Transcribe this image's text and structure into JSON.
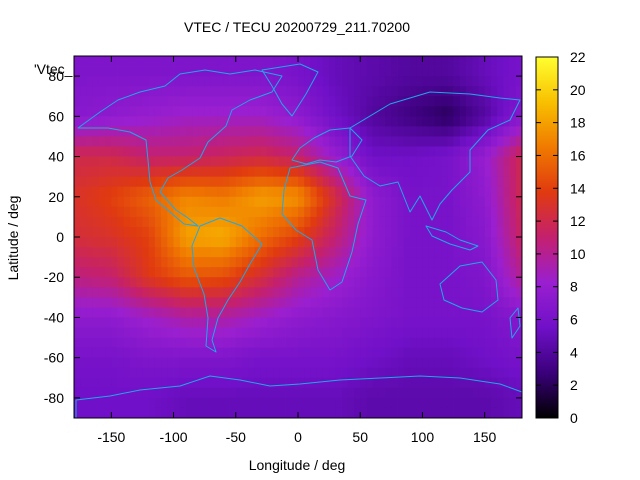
{
  "chart_data": {
    "type": "heatmap",
    "title": "VTEC / TECU 20200729_211.70200",
    "xlabel": "Longitude / deg",
    "ylabel": "Latitude / deg",
    "legend_key": "'Vtec_",
    "xlim": [
      -180,
      180
    ],
    "ylim": [
      -90,
      90
    ],
    "xticks": [
      -150,
      -100,
      -50,
      0,
      50,
      100,
      150
    ],
    "yticks": [
      -80,
      -60,
      -40,
      -20,
      0,
      20,
      40,
      60,
      80
    ],
    "colorbar": {
      "min": 0,
      "max": 22,
      "ticks": [
        0,
        2,
        4,
        6,
        8,
        10,
        12,
        14,
        16,
        18,
        20,
        22
      ],
      "palette": [
        "#000000",
        "#3a007a",
        "#7010c8",
        "#9a1fd0",
        "#c4206e",
        "#e03a10",
        "#f07a00",
        "#f8c000",
        "#ffff30"
      ]
    },
    "grid": false,
    "legend_placement": "right colorbar",
    "z_lat": [
      80,
      60,
      40,
      20,
      0,
      -20,
      -40,
      -60,
      -80
    ],
    "z_lon": [
      -180,
      -150,
      -120,
      -90,
      -60,
      -30,
      0,
      30,
      60,
      90,
      120,
      150,
      180
    ],
    "z_values": [
      [
        6.5,
        6.5,
        6.5,
        6.5,
        6.5,
        6.5,
        6.0,
        5.0,
        4.5,
        4.0,
        4.0,
        5.0,
        6.0
      ],
      [
        7.0,
        7.5,
        8.0,
        8.5,
        8.5,
        8.5,
        7.5,
        5.5,
        4.0,
        3.0,
        2.0,
        4.0,
        7.0
      ],
      [
        12.0,
        12.0,
        11.0,
        11.0,
        11.5,
        12.0,
        11.0,
        8.0,
        5.5,
        5.5,
        6.0,
        8.0,
        12.0
      ],
      [
        13.0,
        14.0,
        15.5,
        17.0,
        16.5,
        18.0,
        17.5,
        12.5,
        7.5,
        6.0,
        6.0,
        7.5,
        12.0
      ],
      [
        12.5,
        13.0,
        14.0,
        18.0,
        18.5,
        16.0,
        14.0,
        11.0,
        7.5,
        6.0,
        6.0,
        7.0,
        11.5
      ],
      [
        10.5,
        11.0,
        13.5,
        15.0,
        14.5,
        12.5,
        10.0,
        8.5,
        7.0,
        6.0,
        6.0,
        6.5,
        10.0
      ],
      [
        7.5,
        7.5,
        8.5,
        9.5,
        9.5,
        8.5,
        7.5,
        7.0,
        6.5,
        6.0,
        6.0,
        6.0,
        7.0
      ],
      [
        6.0,
        6.0,
        6.5,
        6.5,
        6.5,
        6.0,
        6.0,
        6.0,
        5.5,
        5.0,
        5.0,
        5.5,
        6.0
      ],
      [
        5.5,
        5.5,
        5.5,
        5.0,
        5.0,
        5.0,
        5.0,
        5.0,
        4.5,
        4.5,
        4.5,
        4.5,
        5.0
      ]
    ]
  }
}
